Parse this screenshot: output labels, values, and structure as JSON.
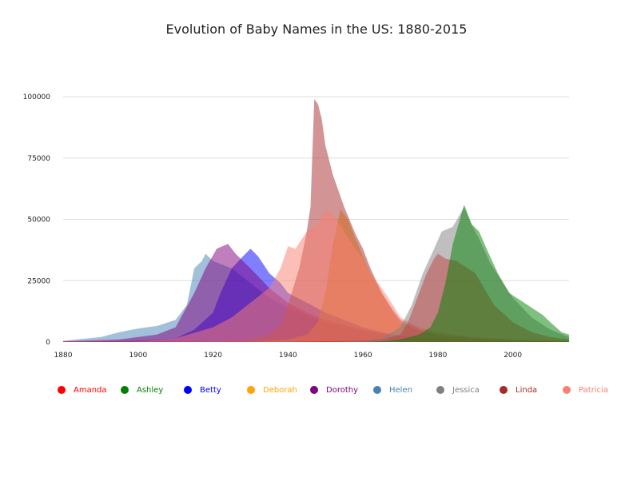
{
  "chart_data": {
    "type": "area",
    "title": "Evolution of Baby Names in the US: 1880-2015",
    "xlabel": "",
    "ylabel": "",
    "xlim": [
      1880,
      2015
    ],
    "ylim": [
      0,
      100000
    ],
    "x_ticks": [
      "1880",
      "1900",
      "1920",
      "1940",
      "1960",
      "1980",
      "2000"
    ],
    "y_ticks": [
      "0",
      "25000",
      "50000",
      "75000",
      "100000"
    ],
    "grid": true,
    "legend_position": "bottom",
    "series": [
      {
        "name": "Helen",
        "color": "#4682b4",
        "points": [
          [
            1880,
            500
          ],
          [
            1890,
            2000
          ],
          [
            1895,
            4000
          ],
          [
            1900,
            5500
          ],
          [
            1905,
            6500
          ],
          [
            1910,
            9000
          ],
          [
            1913,
            15000
          ],
          [
            1915,
            30000
          ],
          [
            1917,
            33000
          ],
          [
            1918,
            36000
          ],
          [
            1920,
            33000
          ],
          [
            1925,
            30000
          ],
          [
            1930,
            24000
          ],
          [
            1935,
            18000
          ],
          [
            1940,
            14000
          ],
          [
            1945,
            11000
          ],
          [
            1950,
            8000
          ],
          [
            1955,
            6000
          ],
          [
            1960,
            4500
          ],
          [
            1965,
            3000
          ],
          [
            1970,
            2000
          ],
          [
            1980,
            1200
          ],
          [
            1990,
            900
          ],
          [
            2000,
            700
          ],
          [
            2015,
            500
          ]
        ]
      },
      {
        "name": "Betty",
        "color": "#0000ff",
        "points": [
          [
            1880,
            0
          ],
          [
            1900,
            500
          ],
          [
            1910,
            1500
          ],
          [
            1915,
            5000
          ],
          [
            1920,
            12000
          ],
          [
            1922,
            20000
          ],
          [
            1925,
            30000
          ],
          [
            1928,
            35000
          ],
          [
            1930,
            38000
          ],
          [
            1932,
            35000
          ],
          [
            1935,
            28000
          ],
          [
            1938,
            24000
          ],
          [
            1940,
            20000
          ],
          [
            1945,
            16000
          ],
          [
            1950,
            12000
          ],
          [
            1955,
            9000
          ],
          [
            1960,
            6000
          ],
          [
            1965,
            4000
          ],
          [
            1970,
            2500
          ],
          [
            1980,
            1200
          ],
          [
            1990,
            600
          ],
          [
            2000,
            400
          ],
          [
            2015,
            200
          ]
        ]
      },
      {
        "name": "Dorothy",
        "color": "#800080",
        "points": [
          [
            1880,
            300
          ],
          [
            1895,
            1000
          ],
          [
            1905,
            3000
          ],
          [
            1910,
            6000
          ],
          [
            1915,
            20000
          ],
          [
            1918,
            30000
          ],
          [
            1921,
            38000
          ],
          [
            1924,
            40000
          ],
          [
            1926,
            36000
          ],
          [
            1930,
            30000
          ],
          [
            1935,
            22000
          ],
          [
            1940,
            16000
          ],
          [
            1945,
            12000
          ],
          [
            1950,
            9000
          ],
          [
            1955,
            7000
          ],
          [
            1960,
            5000
          ],
          [
            1965,
            3500
          ],
          [
            1970,
            2000
          ],
          [
            1980,
            1000
          ],
          [
            1990,
            500
          ],
          [
            2000,
            300
          ],
          [
            2015,
            200
          ]
        ]
      },
      {
        "name": "Deborah",
        "color": "#ffa500",
        "points": [
          [
            1880,
            0
          ],
          [
            1930,
            0
          ],
          [
            1940,
            1000
          ],
          [
            1945,
            3000
          ],
          [
            1948,
            8000
          ],
          [
            1950,
            20000
          ],
          [
            1952,
            40000
          ],
          [
            1954,
            54000
          ],
          [
            1956,
            50000
          ],
          [
            1958,
            42000
          ],
          [
            1960,
            35000
          ],
          [
            1962,
            28000
          ],
          [
            1965,
            20000
          ],
          [
            1968,
            12000
          ],
          [
            1970,
            8000
          ],
          [
            1975,
            4000
          ],
          [
            1980,
            2500
          ],
          [
            1990,
            1200
          ],
          [
            2000,
            600
          ],
          [
            2015,
            200
          ]
        ]
      },
      {
        "name": "Linda",
        "color": "#a52a2a",
        "points": [
          [
            1880,
            0
          ],
          [
            1920,
            0
          ],
          [
            1930,
            1000
          ],
          [
            1935,
            3000
          ],
          [
            1938,
            7000
          ],
          [
            1940,
            15000
          ],
          [
            1943,
            30000
          ],
          [
            1945,
            45000
          ],
          [
            1946,
            55000
          ],
          [
            1947,
            99000
          ],
          [
            1948,
            97000
          ],
          [
            1949,
            91000
          ],
          [
            1950,
            80000
          ],
          [
            1952,
            68000
          ],
          [
            1955,
            55000
          ],
          [
            1958,
            44000
          ],
          [
            1960,
            38000
          ],
          [
            1962,
            30000
          ],
          [
            1965,
            20000
          ],
          [
            1968,
            13000
          ],
          [
            1970,
            9000
          ],
          [
            1975,
            5000
          ],
          [
            1980,
            3000
          ],
          [
            1990,
            1500
          ],
          [
            2000,
            800
          ],
          [
            2015,
            300
          ]
        ]
      },
      {
        "name": "Patricia",
        "color": "#fa8072",
        "points": [
          [
            1880,
            0
          ],
          [
            1900,
            300
          ],
          [
            1910,
            1500
          ],
          [
            1920,
            6000
          ],
          [
            1925,
            10000
          ],
          [
            1930,
            16000
          ],
          [
            1935,
            22000
          ],
          [
            1938,
            30000
          ],
          [
            1940,
            39000
          ],
          [
            1942,
            38000
          ],
          [
            1945,
            45000
          ],
          [
            1948,
            48000
          ],
          [
            1950,
            54000
          ],
          [
            1952,
            52000
          ],
          [
            1955,
            45000
          ],
          [
            1958,
            38000
          ],
          [
            1960,
            34000
          ],
          [
            1962,
            28000
          ],
          [
            1965,
            22000
          ],
          [
            1968,
            15000
          ],
          [
            1970,
            10000
          ],
          [
            1975,
            6000
          ],
          [
            1980,
            4000
          ],
          [
            1990,
            2000
          ],
          [
            2000,
            1000
          ],
          [
            2015,
            400
          ]
        ]
      },
      {
        "name": "Amanda",
        "color": "#ff0000",
        "points": [
          [
            1880,
            200
          ],
          [
            1900,
            150
          ],
          [
            1920,
            100
          ],
          [
            1940,
            100
          ],
          [
            1960,
            500
          ],
          [
            1965,
            800
          ],
          [
            1970,
            3000
          ],
          [
            1972,
            8000
          ],
          [
            1975,
            20000
          ],
          [
            1977,
            28000
          ],
          [
            1979,
            34000
          ],
          [
            1980,
            36000
          ],
          [
            1982,
            34000
          ],
          [
            1985,
            33000
          ],
          [
            1990,
            28000
          ],
          [
            1995,
            15000
          ],
          [
            2000,
            8000
          ],
          [
            2005,
            4000
          ],
          [
            2010,
            2000
          ],
          [
            2015,
            1000
          ]
        ]
      },
      {
        "name": "Jessica",
        "color": "#808080",
        "points": [
          [
            1880,
            0
          ],
          [
            1950,
            0
          ],
          [
            1960,
            500
          ],
          [
            1965,
            1500
          ],
          [
            1970,
            6000
          ],
          [
            1973,
            15000
          ],
          [
            1976,
            28000
          ],
          [
            1979,
            38000
          ],
          [
            1981,
            45000
          ],
          [
            1984,
            47000
          ],
          [
            1987,
            55000
          ],
          [
            1989,
            48000
          ],
          [
            1991,
            42000
          ],
          [
            1994,
            32000
          ],
          [
            1997,
            25000
          ],
          [
            2000,
            18000
          ],
          [
            2005,
            10000
          ],
          [
            2010,
            5000
          ],
          [
            2015,
            2000
          ]
        ]
      },
      {
        "name": "Ashley",
        "color": "#008000",
        "points": [
          [
            1880,
            0
          ],
          [
            1960,
            0
          ],
          [
            1965,
            200
          ],
          [
            1970,
            1000
          ],
          [
            1975,
            3000
          ],
          [
            1978,
            6000
          ],
          [
            1980,
            12000
          ],
          [
            1982,
            24000
          ],
          [
            1984,
            40000
          ],
          [
            1987,
            56000
          ],
          [
            1989,
            48000
          ],
          [
            1991,
            45000
          ],
          [
            1993,
            38000
          ],
          [
            1996,
            28000
          ],
          [
            1999,
            20000
          ],
          [
            2002,
            17000
          ],
          [
            2005,
            14000
          ],
          [
            2008,
            11000
          ],
          [
            2010,
            8000
          ],
          [
            2013,
            4000
          ],
          [
            2015,
            3000
          ]
        ]
      }
    ]
  }
}
